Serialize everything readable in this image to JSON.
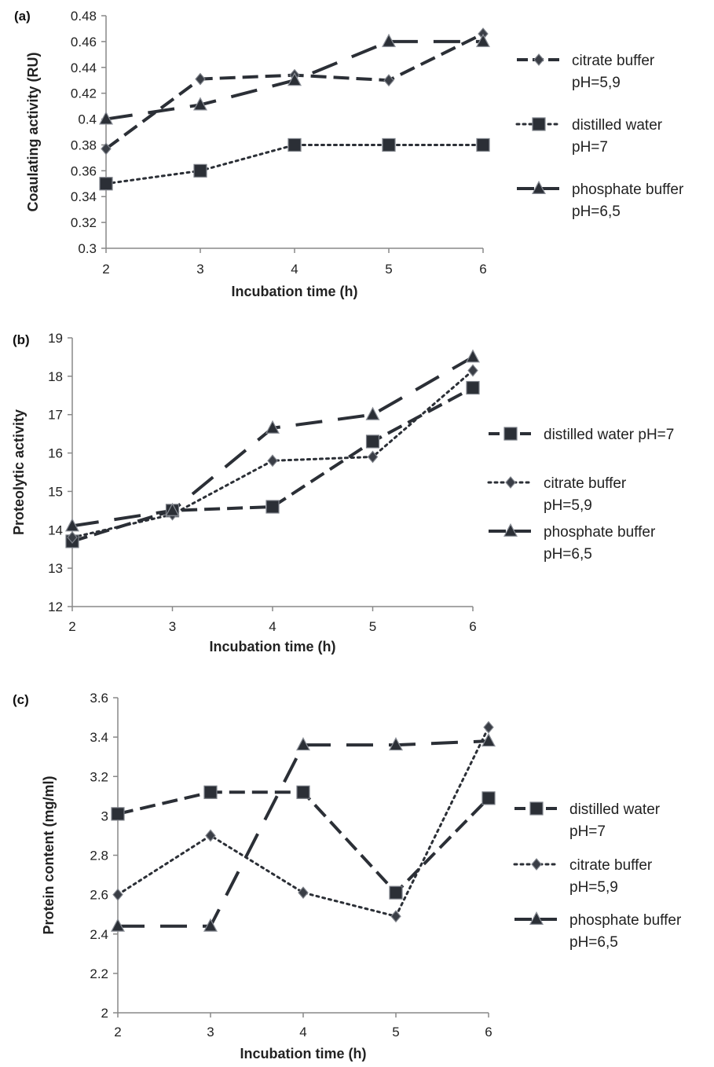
{
  "chart_data": [
    {
      "type": "line",
      "panel_label": "(a)",
      "x": [
        2,
        3,
        4,
        5,
        6
      ],
      "xlabel": "Incubation time (h)",
      "ylabel": "Coaulating activity (RU)",
      "ylim": [
        0.3,
        0.48
      ],
      "xticks": [
        "2",
        "3",
        "4",
        "5",
        "6"
      ],
      "yticks": [
        "0.3",
        "0.32",
        "0.34",
        "0.36",
        "0.38",
        "0.4",
        "0.42",
        "0.44",
        "0.46",
        "0.48"
      ],
      "grid": false,
      "legend_position": "right",
      "series": [
        {
          "name": [
            "citrate buffer",
            "pH=5,9"
          ],
          "values": [
            0.377,
            0.431,
            0.434,
            0.43,
            0.466
          ],
          "marker": "diamond",
          "line": "dashed"
        },
        {
          "name": [
            "distilled water",
            "pH=7"
          ],
          "values": [
            0.35,
            0.36,
            0.38,
            0.38,
            0.38
          ],
          "marker": "square",
          "line": "dotted"
        },
        {
          "name": [
            "phosphate buffer",
            "pH=6,5"
          ],
          "values": [
            0.4,
            0.411,
            0.43,
            0.46,
            0.46
          ],
          "marker": "triangle",
          "line": "longdash"
        }
      ]
    },
    {
      "type": "line",
      "panel_label": "(b)",
      "x": [
        2,
        3,
        4,
        5,
        6
      ],
      "xlabel": "Incubation time (h)",
      "ylabel": "Proteolytic activity",
      "ylim": [
        12,
        19
      ],
      "xticks": [
        "2",
        "3",
        "4",
        "5",
        "6"
      ],
      "yticks": [
        "12",
        "13",
        "14",
        "15",
        "16",
        "17",
        "18",
        "19"
      ],
      "grid": false,
      "legend_position": "right",
      "series": [
        {
          "name": [
            "distilled water pH=7"
          ],
          "values": [
            13.7,
            14.5,
            14.6,
            16.3,
            17.7
          ],
          "marker": "square",
          "line": "dashed"
        },
        {
          "name": [
            "citrate buffer",
            "pH=5,9"
          ],
          "values": [
            13.8,
            14.4,
            15.8,
            15.9,
            18.15
          ],
          "marker": "diamond",
          "line": "dotted"
        },
        {
          "name": [
            "phosphate buffer",
            "pH=6,5"
          ],
          "values": [
            14.1,
            14.5,
            16.65,
            17.0,
            18.5
          ],
          "marker": "triangle",
          "line": "longdash"
        }
      ]
    },
    {
      "type": "line",
      "panel_label": "(c)",
      "x": [
        2,
        3,
        4,
        5,
        6
      ],
      "xlabel": "Incubation time (h)",
      "ylabel": "Protein content (mg/ml)",
      "ylim": [
        2,
        3.6
      ],
      "xticks": [
        "2",
        "3",
        "4",
        "5",
        "6"
      ],
      "yticks": [
        "2",
        "2.2",
        "2.4",
        "2.6",
        "2.8",
        "3",
        "3.2",
        "3.4",
        "3.6"
      ],
      "grid": false,
      "legend_position": "right",
      "series": [
        {
          "name": [
            "distilled water",
            "pH=7"
          ],
          "values": [
            3.01,
            3.12,
            3.12,
            2.61,
            3.09
          ],
          "marker": "square",
          "line": "dashed"
        },
        {
          "name": [
            "citrate buffer",
            "pH=5,9"
          ],
          "values": [
            2.6,
            2.9,
            2.61,
            2.49,
            3.45
          ],
          "marker": "diamond",
          "line": "dotted"
        },
        {
          "name": [
            "phosphate buffer",
            "pH=6,5"
          ],
          "values": [
            2.44,
            2.44,
            3.36,
            3.36,
            3.38
          ],
          "marker": "triangle",
          "line": "longdash"
        }
      ]
    }
  ]
}
